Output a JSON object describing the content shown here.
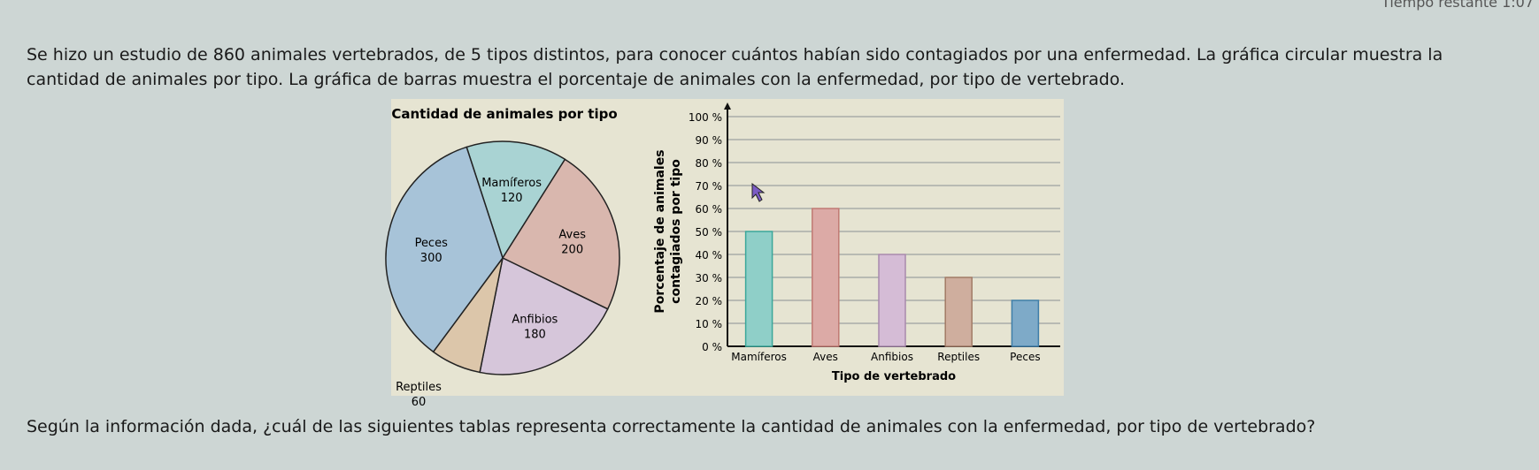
{
  "timer": "Tiempo restante 1:07",
  "intro": "Se hizo un estudio de 860 animales vertebrados, de 5 tipos distintos, para conocer cuántos habían sido contagiados por una enfermedad. La gráfica circular muestra la cantidad de animales por tipo. La gráfica de barras muestra el porcentaje de animales con la enfermedad, por tipo de vertebrado.",
  "question": "Según la información dada, ¿cuál de las siguientes tablas representa correctamente la cantidad de animales con la enfermedad, por tipo de vertebrado?",
  "chart_data": [
    {
      "type": "pie",
      "title": "Cantidad de animales por tipo",
      "categories": [
        "Mamíferos",
        "Aves",
        "Anfibios",
        "Reptiles",
        "Peces"
      ],
      "values": [
        120,
        200,
        180,
        60,
        300
      ],
      "value_labels": [
        "120",
        "200",
        "180",
        "60",
        "300"
      ],
      "colors": [
        "#a9d3d3",
        "#d9b7ae",
        "#d6c6da",
        "#dcc6aa",
        "#a7c3d8"
      ]
    },
    {
      "type": "bar",
      "title": "",
      "xlabel": "Tipo de vertebrado",
      "ylabel": [
        "Porcentaje de animales",
        "contagiados por tipo"
      ],
      "categories": [
        "Mamíferos",
        "Aves",
        "Anfibios",
        "Reptiles",
        "Peces"
      ],
      "values": [
        50,
        60,
        40,
        30,
        20
      ],
      "ylim": [
        0,
        100
      ],
      "yticks": [
        "0 %",
        "10 %",
        "20 %",
        "30 %",
        "40 %",
        "50 %",
        "60 %",
        "70 %",
        "80 %",
        "90 %",
        "100 %"
      ],
      "grid": true,
      "colors": [
        "#8fcfc8",
        "#dcaaa6",
        "#d5bcd6",
        "#cfae9e",
        "#7eaac8"
      ],
      "edge_colors": [
        "#3aa79a",
        "#c07a74",
        "#a98aad",
        "#a17b66",
        "#3f7ea8"
      ]
    }
  ]
}
